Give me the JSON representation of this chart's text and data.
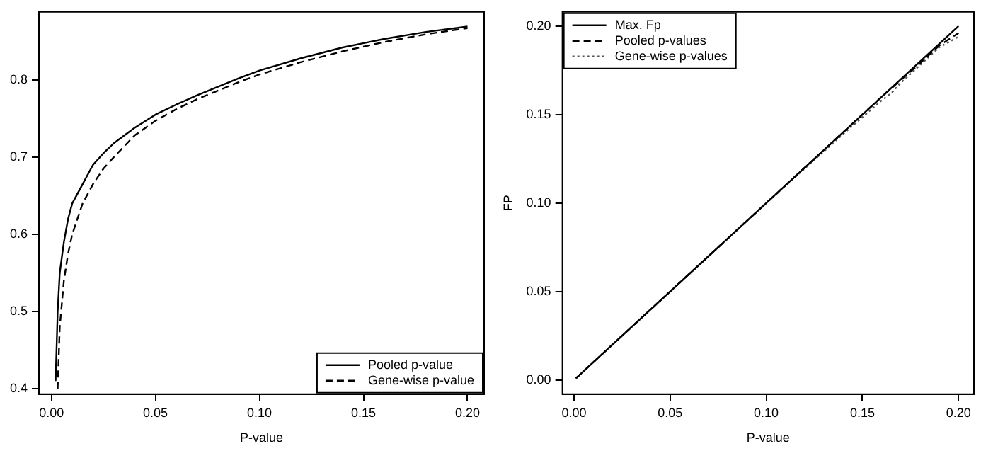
{
  "chart_data": [
    {
      "type": "line",
      "xlabel": "P-value",
      "xlim": [
        -0.006,
        0.208
      ],
      "ylim": [
        0.393,
        0.888
      ],
      "xticks": [
        {
          "value": 0,
          "label": "0.00"
        },
        {
          "value": 0.05,
          "label": "0.05"
        },
        {
          "value": 0.1,
          "label": "0.10"
        },
        {
          "value": 0.15,
          "label": "0.15"
        },
        {
          "value": 0.2,
          "label": "0.20"
        }
      ],
      "yticks": [
        0.4,
        0.5,
        0.6,
        0.7,
        0.8
      ],
      "grid": false,
      "legend": "bottom right",
      "marker": "none",
      "series": [
        {
          "name": "Pooled p-value",
          "color": "#000000",
          "line_style": "solid",
          "x": [
            0.002,
            0.003,
            0.004,
            0.006,
            0.008,
            0.01,
            0.015,
            0.02,
            0.025,
            0.03,
            0.04,
            0.05,
            0.06,
            0.07,
            0.08,
            0.09,
            0.1,
            0.12,
            0.14,
            0.16,
            0.18,
            0.2
          ],
          "values": [
            0.41,
            0.5,
            0.55,
            0.59,
            0.62,
            0.64,
            0.665,
            0.69,
            0.705,
            0.718,
            0.738,
            0.755,
            0.768,
            0.78,
            0.791,
            0.802,
            0.812,
            0.828,
            0.842,
            0.853,
            0.862,
            0.869
          ]
        },
        {
          "name": "Gene-wise p-value",
          "color": "#000000",
          "line_style": "dashed",
          "x": [
            0.003,
            0.004,
            0.006,
            0.008,
            0.01,
            0.015,
            0.02,
            0.025,
            0.03,
            0.04,
            0.05,
            0.06,
            0.07,
            0.08,
            0.09,
            0.1,
            0.12,
            0.14,
            0.16,
            0.18,
            0.2
          ],
          "values": [
            0.4,
            0.48,
            0.54,
            0.575,
            0.6,
            0.64,
            0.665,
            0.685,
            0.7,
            0.728,
            0.747,
            0.762,
            0.775,
            0.786,
            0.797,
            0.807,
            0.823,
            0.837,
            0.849,
            0.859,
            0.867
          ]
        }
      ]
    },
    {
      "type": "line",
      "xlabel": "P-value",
      "ylabel": "FP",
      "xlim": [
        -0.006,
        0.208
      ],
      "ylim": [
        -0.008,
        0.208
      ],
      "xticks": [
        {
          "value": 0,
          "label": "0.00"
        },
        {
          "value": 0.05,
          "label": "0.05"
        },
        {
          "value": 0.1,
          "label": "0.10"
        },
        {
          "value": 0.15,
          "label": "0.15"
        },
        {
          "value": 0.2,
          "label": "0.20"
        }
      ],
      "yticks": [
        {
          "value": 0,
          "label": "0.00"
        },
        {
          "value": 0.05,
          "label": "0.05"
        },
        {
          "value": 0.1,
          "label": "0.10"
        },
        {
          "value": 0.15,
          "label": "0.15"
        },
        {
          "value": 0.2,
          "label": "0.20"
        }
      ],
      "grid": false,
      "legend": "top left",
      "marker": "none",
      "series": [
        {
          "name": "Max. Fp",
          "color": "#000000",
          "line_style": "solid",
          "x": [
            0.001,
            0.2
          ],
          "values": [
            0.001,
            0.2
          ]
        },
        {
          "name": "Pooled p-values",
          "color": "#000000",
          "line_style": "dashed",
          "x": [
            0.001,
            0.05,
            0.1,
            0.14,
            0.16,
            0.18,
            0.19,
            0.2
          ],
          "values": [
            0.001,
            0.05,
            0.1,
            0.14,
            0.16,
            0.179,
            0.189,
            0.196
          ]
        },
        {
          "name": "Gene-wise p-values",
          "color": "#555555",
          "line_style": "dotted",
          "x": [
            0.001,
            0.05,
            0.1,
            0.14,
            0.16,
            0.165,
            0.17,
            0.18,
            0.19,
            0.2
          ],
          "values": [
            0.001,
            0.05,
            0.1,
            0.139,
            0.158,
            0.162,
            0.168,
            0.178,
            0.188,
            0.194
          ]
        }
      ]
    }
  ]
}
